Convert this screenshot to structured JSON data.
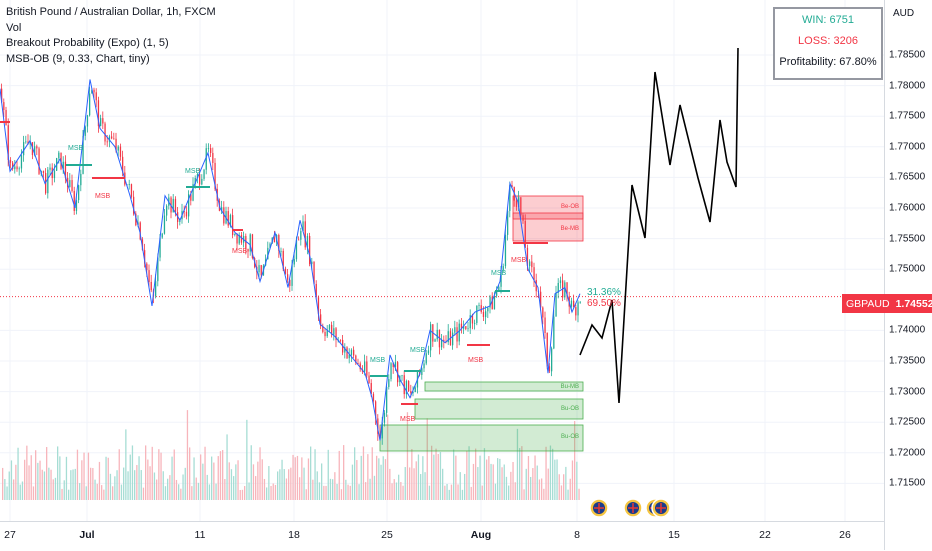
{
  "legend": {
    "title": "British Pound / Australian Dollar, 1h, FXCM",
    "vol": "Vol",
    "indicator1": "Breakout Probability (Expo) (1, 5)",
    "indicator2": "MSB-OB (9, 0.33, Chart, tiny)"
  },
  "currency": "AUD",
  "price_axis": [
    "1.78500",
    "1.78000",
    "1.77500",
    "1.77000",
    "1.76500",
    "1.76000",
    "1.75500",
    "1.75000",
    "1.74000",
    "1.73500",
    "1.73000",
    "1.72500",
    "1.72000",
    "1.71500"
  ],
  "current_price": {
    "symbol": "GBPAUD",
    "value": "1.74552",
    "color": "#f23645"
  },
  "time_axis": [
    "27",
    "Jul",
    "11",
    "18",
    "25",
    "Aug",
    "8",
    "15",
    "22",
    "26"
  ],
  "stats": {
    "win": "WIN: 6751",
    "loss": "LOSS: 3206",
    "profitability": "Profitability: 67.80%"
  },
  "probabilities": {
    "up": "31.36%",
    "down": "69.50%"
  },
  "labels": {
    "msb": "MSB",
    "bear_ob": "Be-OB",
    "bear_mb": "Be-MB",
    "bull_mb": "Bu-MB",
    "bull_ob": "Bu-OB"
  },
  "colors": {
    "bull": "#22ab94",
    "bear": "#f23645",
    "zone_green": "#4caf50",
    "zone_red": "#f23645",
    "projection": "#000000",
    "price_line": "#2962ff"
  }
}
